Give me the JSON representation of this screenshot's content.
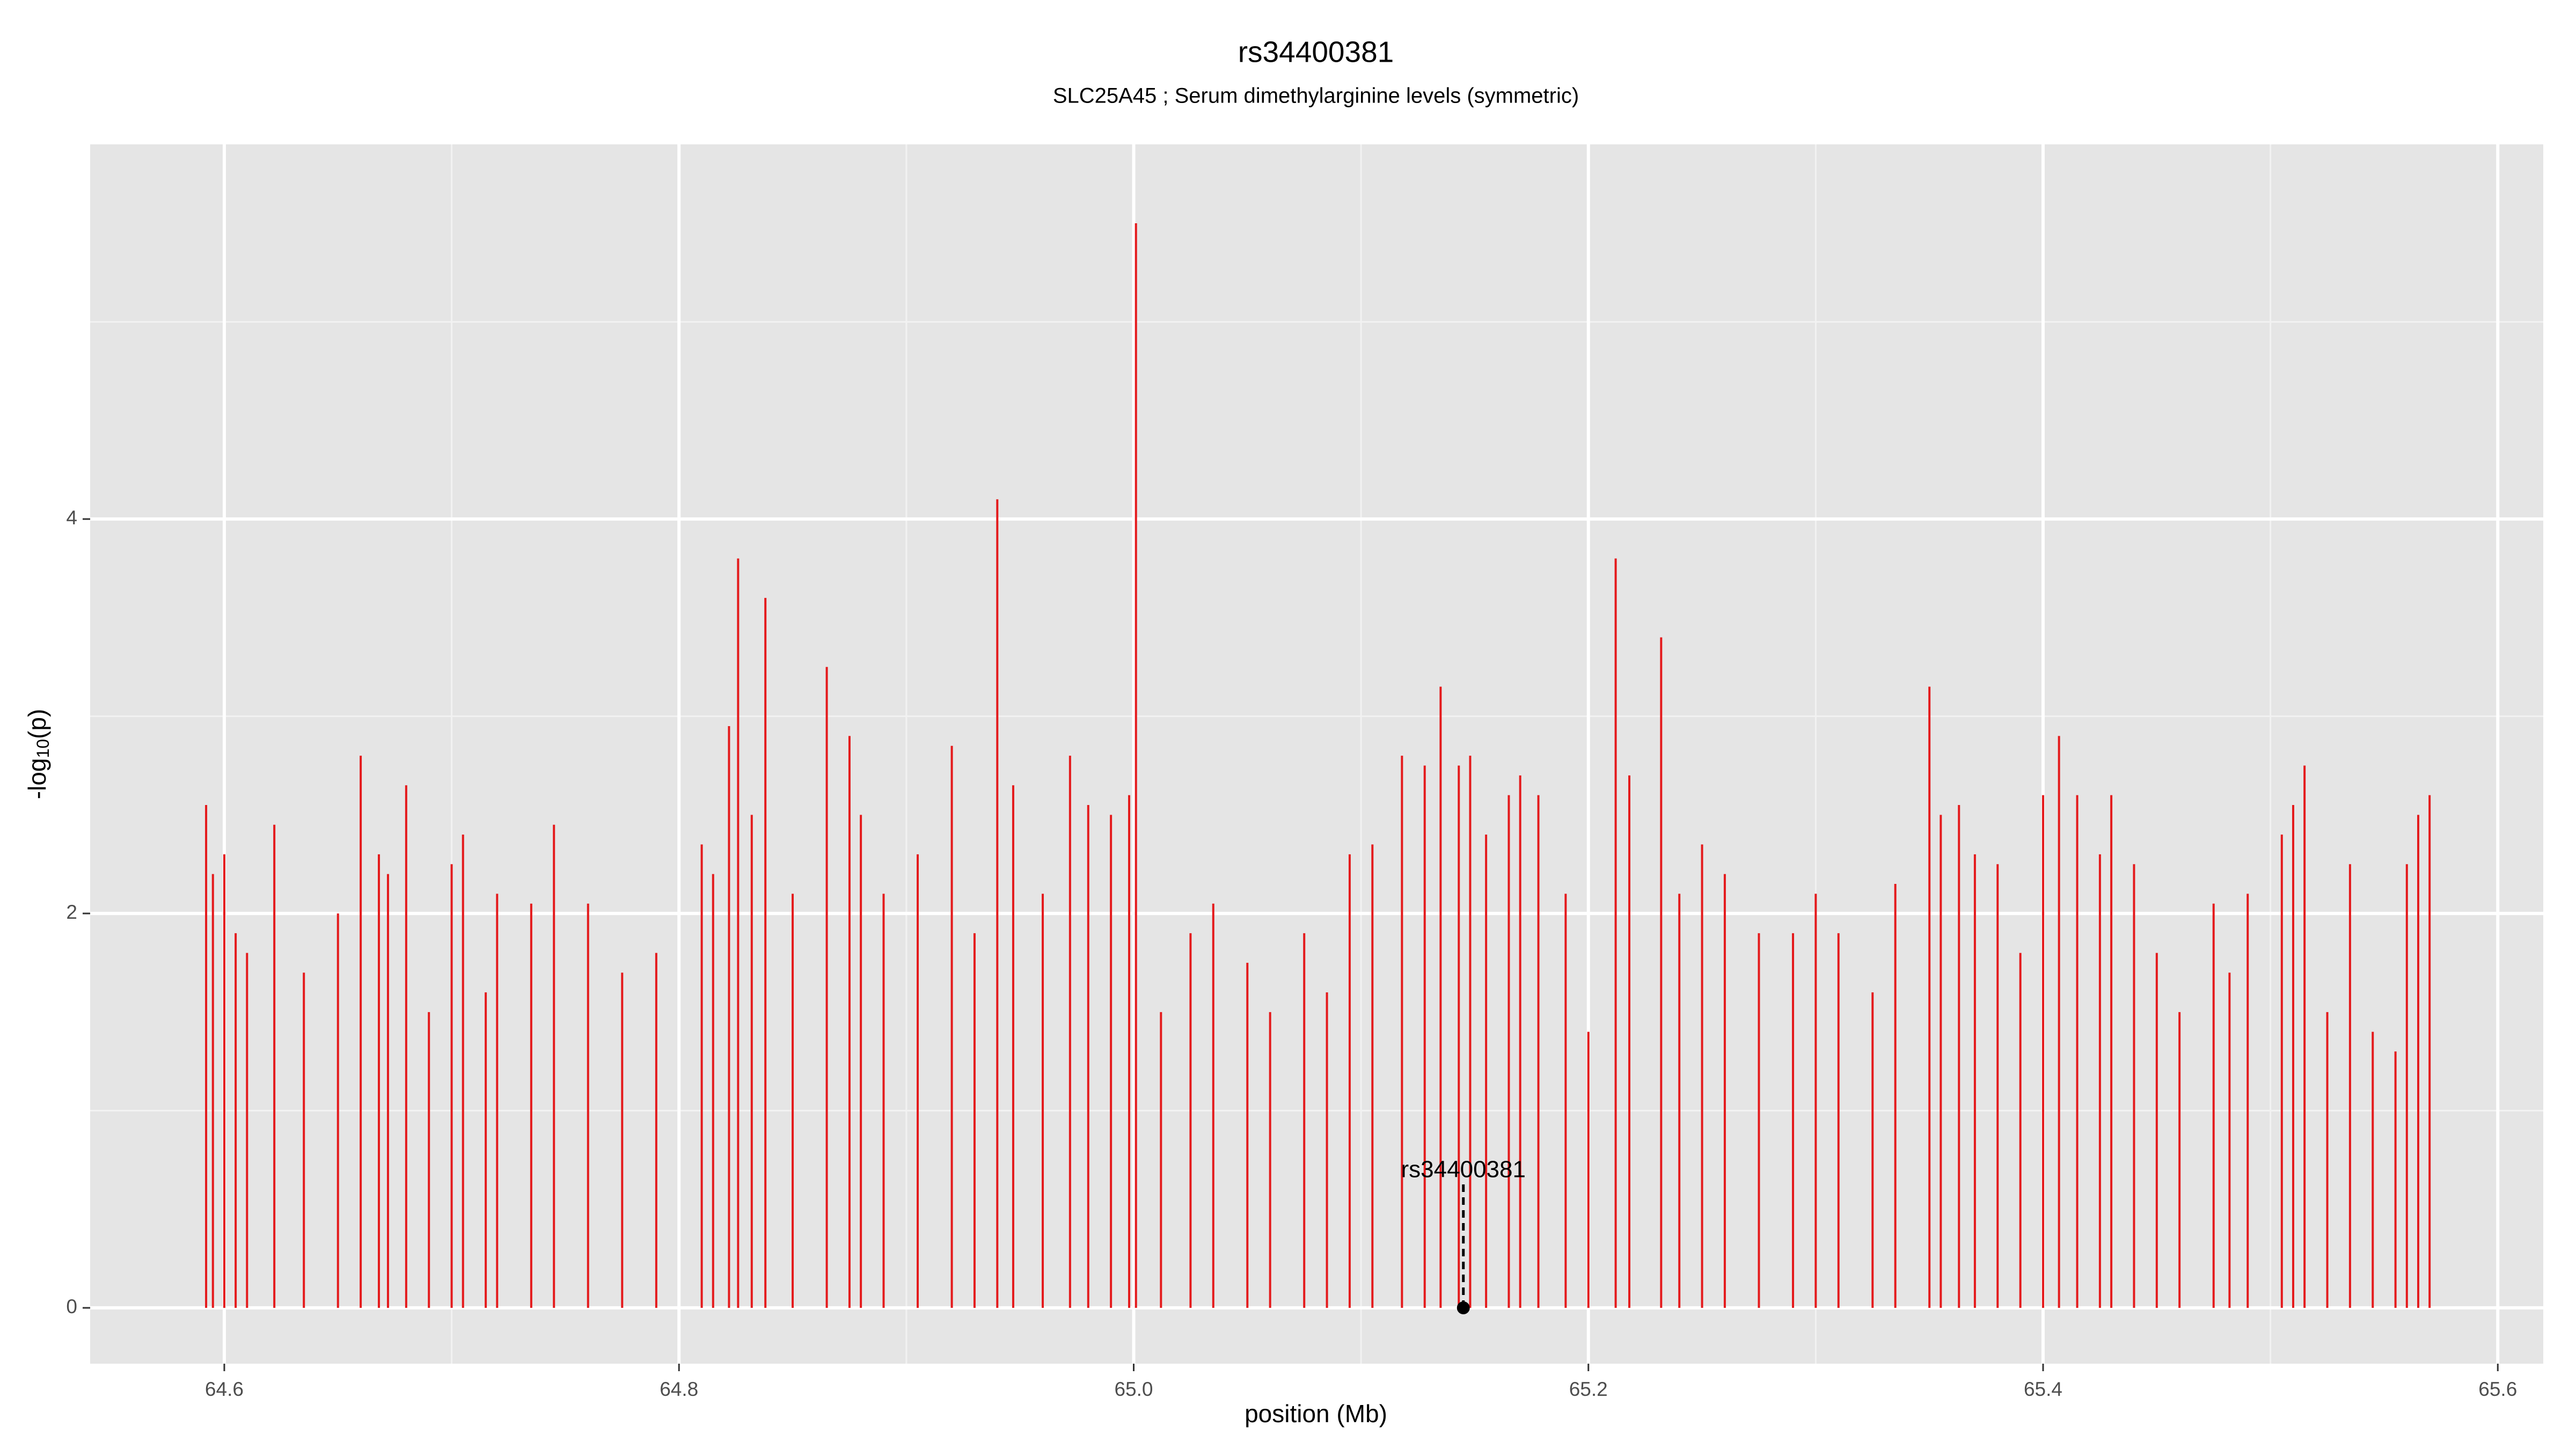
{
  "chart_data": {
    "type": "needle",
    "title": "rs34400381",
    "subtitle": "SLC25A45 ; Serum dimethylarginine levels (symmetric)",
    "x_label": "position (Mb)",
    "y_label_parts": [
      "-log",
      "10",
      "(p)"
    ],
    "xlim": [
      64.541,
      65.62
    ],
    "ylim": [
      -0.283,
      5.9
    ],
    "xticks": [
      64.6,
      64.8,
      {
        "value": 65,
        "label": "65.0"
      },
      65.2,
      65.4,
      65.6
    ],
    "yticks": [
      0,
      2,
      4
    ],
    "x_minor_grid": [
      64.7,
      64.9,
      65.1,
      65.3,
      65.5
    ],
    "y_minor_grid": [
      1,
      3,
      5
    ],
    "grid": true,
    "series": [
      {
        "color": "#e41a1c",
        "x": [
          64.592,
          64.595,
          64.6,
          64.605,
          64.61,
          64.622,
          64.635,
          64.65,
          64.66,
          64.668,
          64.672,
          64.68,
          64.69,
          64.7,
          64.705,
          64.715,
          64.72,
          64.735,
          64.745,
          64.76,
          64.775,
          64.79,
          64.81,
          64.815,
          64.822,
          64.826,
          64.832,
          64.838,
          64.85,
          64.865,
          64.875,
          64.88,
          64.89,
          64.905,
          64.92,
          64.93,
          64.94,
          64.947,
          64.96,
          64.972,
          64.98,
          64.99,
          64.998,
          65.001,
          65.012,
          65.025,
          65.035,
          65.05,
          65.06,
          65.075,
          65.085,
          65.095,
          65.105,
          65.118,
          65.128,
          65.135,
          65.143,
          65.148,
          65.155,
          65.165,
          65.17,
          65.178,
          65.19,
          65.2,
          65.212,
          65.218,
          65.232,
          65.24,
          65.25,
          65.26,
          65.275,
          65.29,
          65.3,
          65.31,
          65.325,
          65.335,
          65.35,
          65.355,
          65.363,
          65.37,
          65.38,
          65.39,
          65.4,
          65.407,
          65.415,
          65.425,
          65.43,
          65.44,
          65.45,
          65.46,
          65.475,
          65.482,
          65.49,
          65.505,
          65.51,
          65.515,
          65.525,
          65.535,
          65.545,
          65.555,
          65.56,
          65.565,
          65.57
        ],
        "values": [
          2.55,
          2.2,
          2.3,
          1.9,
          1.8,
          2.45,
          1.7,
          2.0,
          2.8,
          2.3,
          2.2,
          2.65,
          1.5,
          2.25,
          2.4,
          1.6,
          2.1,
          2.05,
          2.45,
          2.05,
          1.7,
          1.8,
          2.35,
          2.2,
          2.95,
          3.8,
          2.5,
          3.6,
          2.1,
          3.25,
          2.9,
          2.5,
          2.1,
          2.3,
          2.85,
          1.9,
          4.1,
          2.65,
          2.1,
          2.8,
          2.55,
          2.5,
          2.6,
          5.5,
          1.5,
          1.9,
          2.05,
          1.75,
          1.5,
          1.9,
          1.6,
          2.3,
          2.35,
          2.8,
          2.75,
          3.15,
          2.75,
          2.8,
          2.4,
          2.6,
          2.7,
          2.6,
          2.1,
          1.4,
          3.8,
          2.7,
          3.4,
          2.1,
          2.35,
          2.2,
          1.9,
          1.9,
          2.1,
          1.9,
          1.6,
          2.15,
          3.15,
          2.5,
          2.55,
          2.3,
          2.25,
          1.8,
          2.6,
          2.9,
          2.6,
          2.3,
          2.6,
          2.25,
          1.8,
          1.5,
          2.05,
          1.7,
          2.1,
          2.4,
          2.55,
          2.75,
          1.5,
          2.25,
          1.4,
          1.3,
          2.25,
          2.5,
          2.6
        ]
      }
    ],
    "highlight": {
      "label": "rs34400381",
      "x": 65.145,
      "y": 0
    }
  }
}
